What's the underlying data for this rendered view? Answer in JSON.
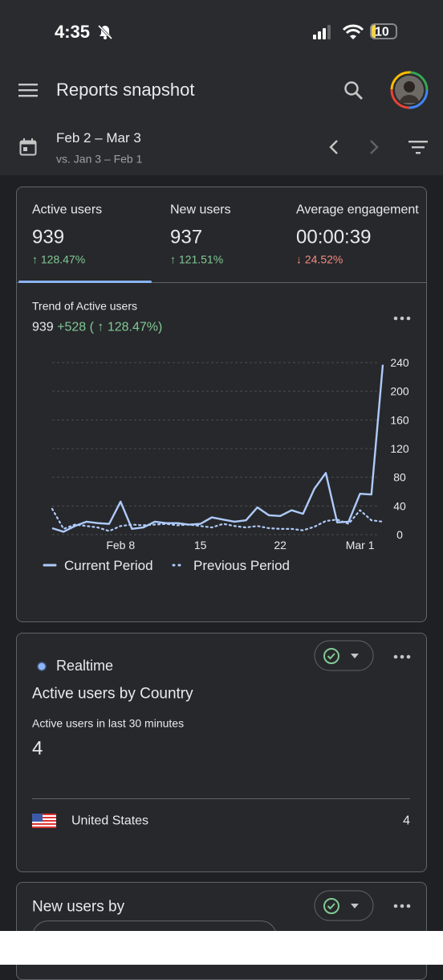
{
  "status_bar": {
    "time": "4:35",
    "battery": "10"
  },
  "header": {
    "title": "Reports snapshot"
  },
  "date_range": {
    "range": "Feb 2 – Mar 3",
    "comparison": "vs. Jan 3 – Feb 1"
  },
  "metrics": [
    {
      "label": "Active users",
      "value": "939",
      "change": "↑ 128.47%"
    },
    {
      "label": "New users",
      "value": "937",
      "change": "↑ 121.51%"
    },
    {
      "label": "Average engagement",
      "value": "00:00:39",
      "change": "↓ 24.52%"
    }
  ],
  "trend": {
    "title": "Trend of Active users",
    "total": "939",
    "delta": "+528 ( ↑ 128.47%)"
  },
  "chart_data": {
    "type": "line",
    "categories": [
      null,
      null,
      null,
      null,
      null,
      null,
      "Feb 8",
      null,
      null,
      null,
      null,
      null,
      null,
      "15",
      null,
      null,
      null,
      null,
      null,
      null,
      "22",
      null,
      null,
      null,
      null,
      null,
      null,
      "Mar 1",
      null,
      null
    ],
    "series": [
      {
        "name": "Current Period",
        "color": "#aecbfa",
        "style": "solid",
        "values": [
          9,
          4,
          12,
          18,
          16,
          15,
          46,
          8,
          10,
          18,
          16,
          16,
          14,
          15,
          24,
          21,
          18,
          20,
          38,
          27,
          26,
          34,
          29,
          64,
          86,
          17,
          18,
          57,
          56,
          237
        ]
      },
      {
        "name": "Previous Period",
        "color": "#aecbfa",
        "style": "dotted",
        "values": [
          36,
          8,
          14,
          12,
          10,
          5,
          12,
          14,
          13,
          14,
          15,
          13,
          14,
          12,
          10,
          15,
          12,
          10,
          12,
          9,
          8,
          8,
          6,
          11,
          19,
          21,
          15,
          34,
          20,
          18
        ]
      }
    ],
    "ylim": [
      0,
      240
    ],
    "yticks": [
      0,
      40,
      80,
      120,
      160,
      200,
      240
    ],
    "grid": true
  },
  "realtime": {
    "label": "Realtime",
    "title": "Active users by Country",
    "subtitle": "Active users in last 30 minutes",
    "value": "4",
    "rows": [
      {
        "country": "United States",
        "value": "4"
      }
    ]
  },
  "new_users": {
    "title": "New users by"
  }
}
